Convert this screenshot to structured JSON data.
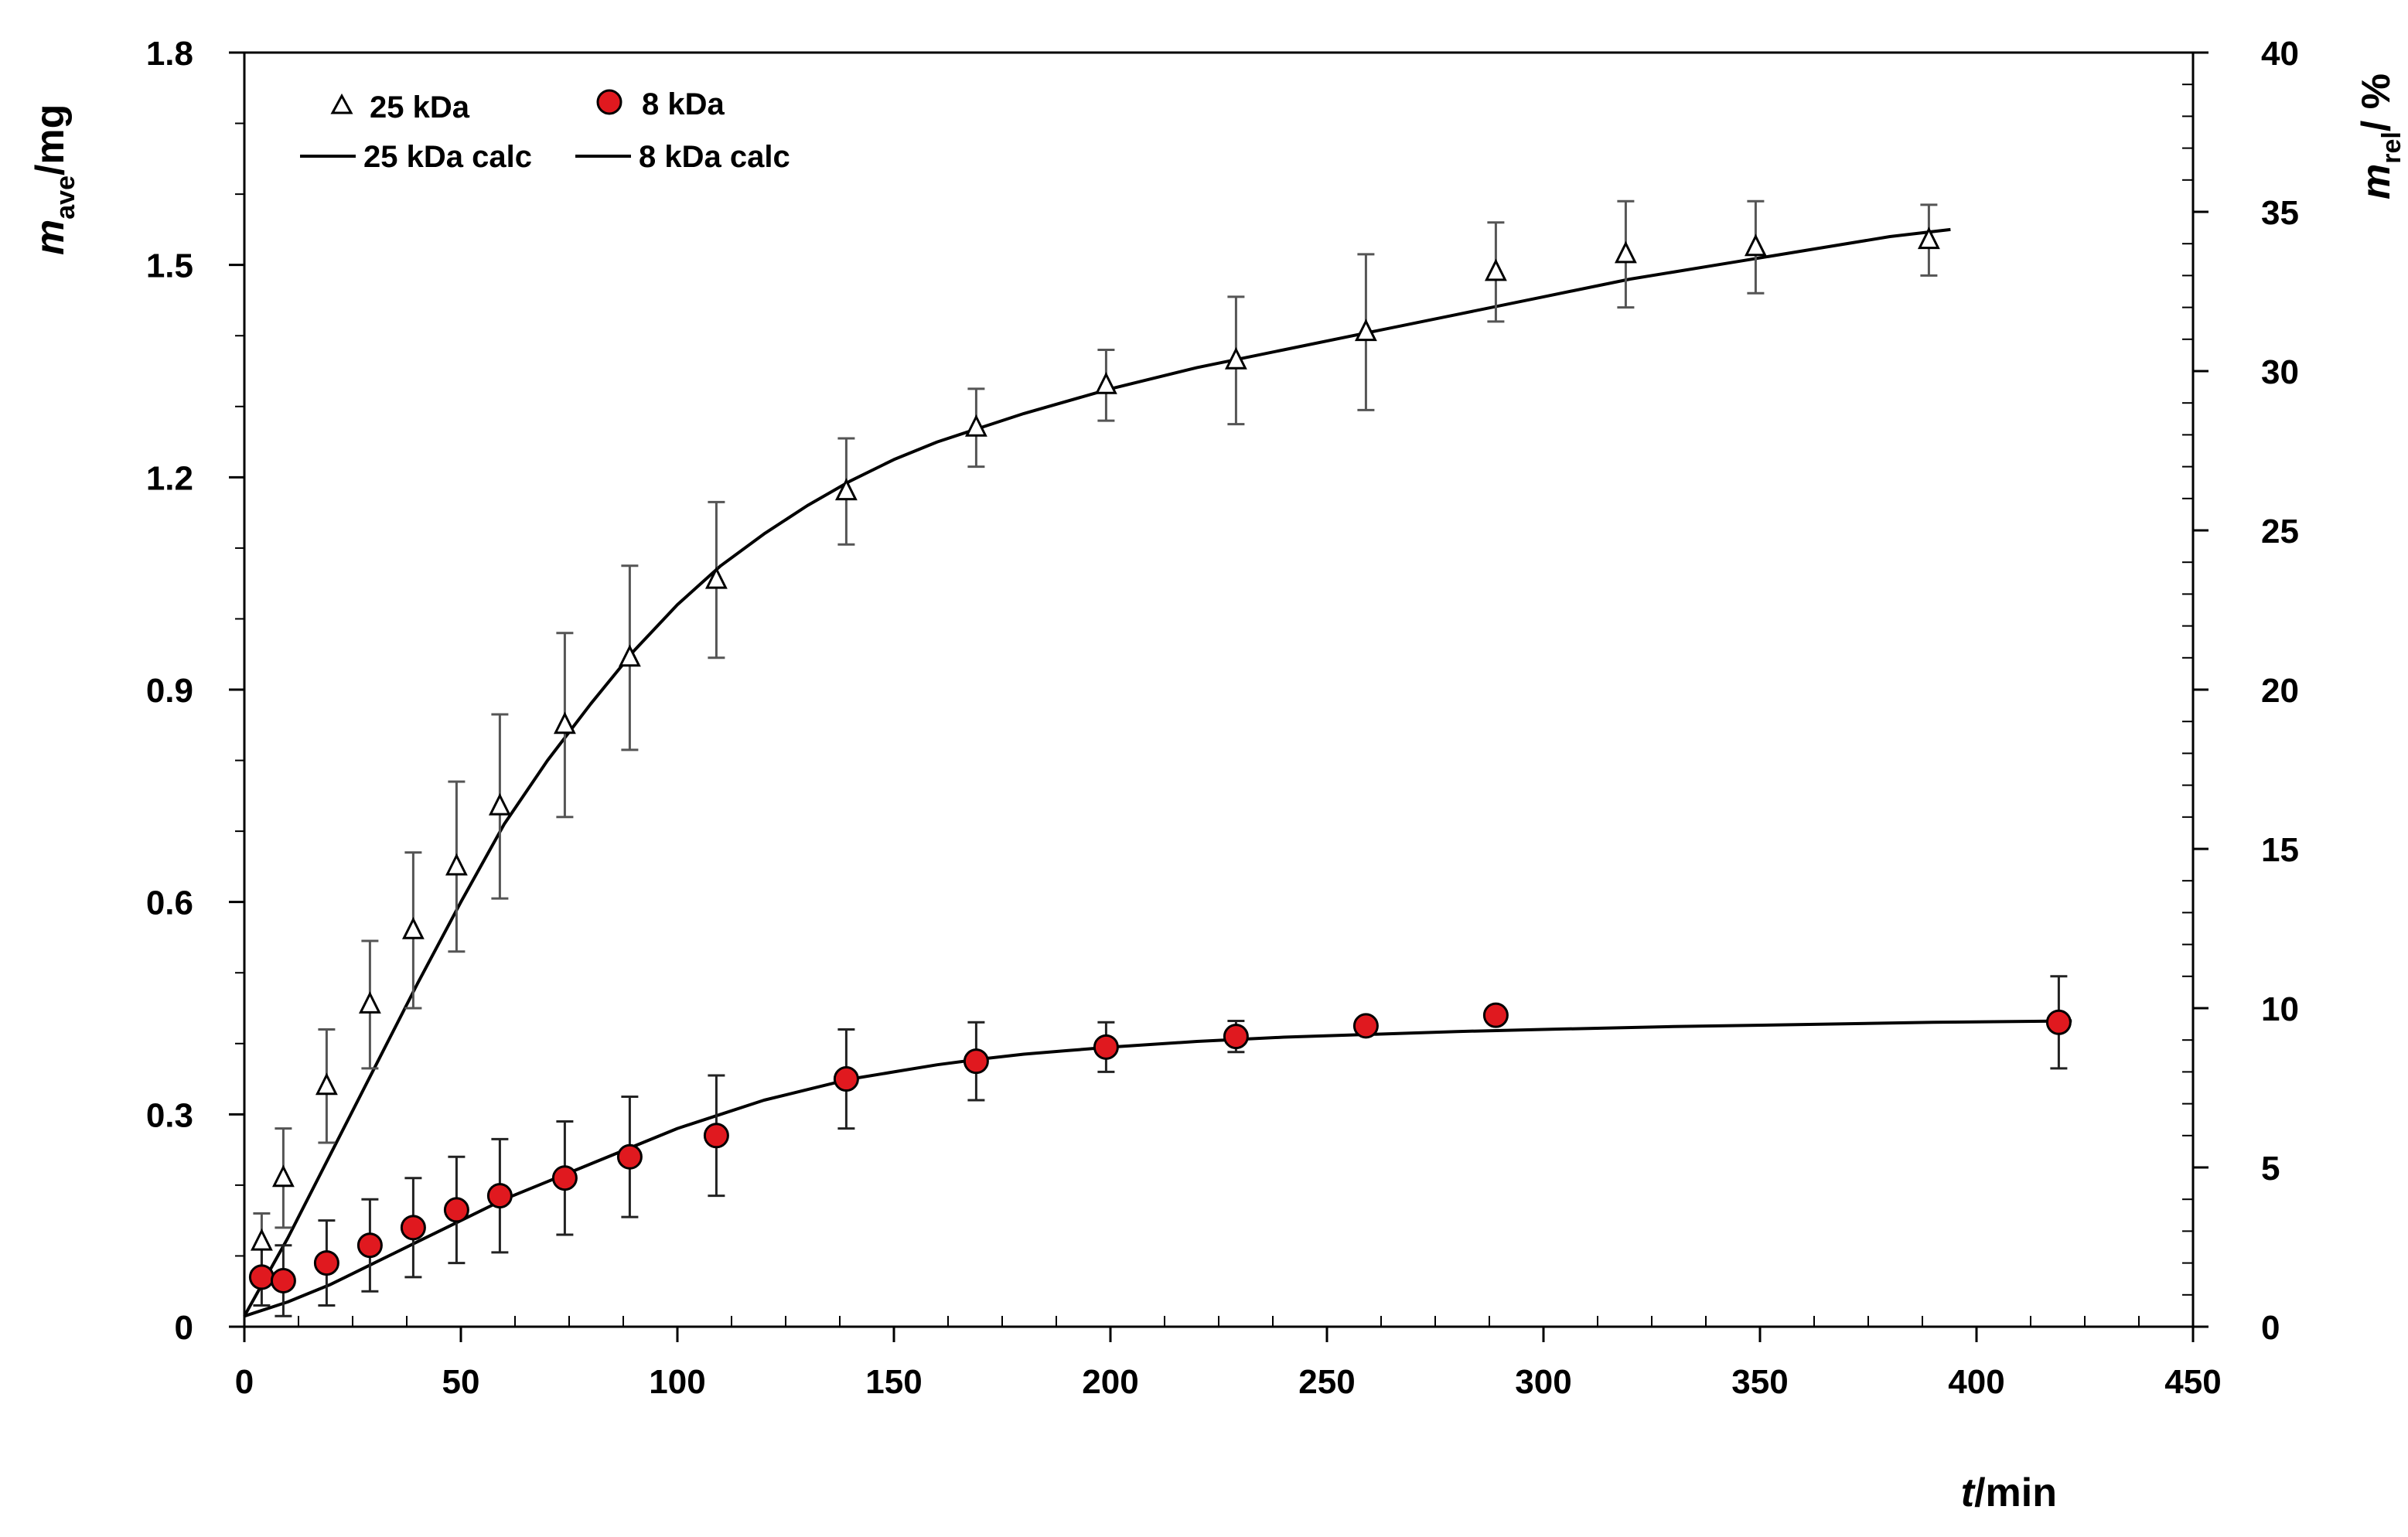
{
  "chart_data": {
    "type": "scatter",
    "title": "",
    "xlabel": {
      "italic": "t",
      "rest": "/min"
    },
    "ylabel": {
      "italic": "m",
      "sub": "ave",
      "rest": "/mg"
    },
    "y2label": {
      "italic": "m",
      "sub": "rel",
      "rest": "/ %"
    },
    "xlim": [
      0,
      450
    ],
    "ylim": [
      0,
      1.8
    ],
    "y2lim": [
      0,
      40
    ],
    "xticks": [
      "0",
      "50",
      "100",
      "150",
      "200",
      "250",
      "300",
      "350",
      "400",
      "450"
    ],
    "yticks": [
      "0",
      "0.3",
      "0.6",
      "0.9",
      "1.2",
      "1.5",
      "1.8"
    ],
    "y2ticks": [
      "0",
      "5",
      "10",
      "15",
      "20",
      "25",
      "30",
      "35",
      "40"
    ],
    "grid": false,
    "legend_position": "top-left",
    "legend": {
      "s25": "25 kDa",
      "s8": "8 kDa",
      "c25": "25 kDa calc",
      "c8": "8 kDa calc"
    },
    "series": [
      {
        "name": "25 kDa",
        "marker": "triangle",
        "color": "#ffffff",
        "errorbar_color": "#555555",
        "x": [
          4,
          9,
          19,
          29,
          39,
          49,
          59,
          74,
          89,
          109,
          139,
          169,
          199,
          229,
          259,
          289,
          319,
          349,
          389
        ],
        "y": [
          0.12,
          0.21,
          0.34,
          0.455,
          0.56,
          0.65,
          0.735,
          0.85,
          0.945,
          1.055,
          1.18,
          1.27,
          1.33,
          1.365,
          1.405,
          1.49,
          1.515,
          1.525,
          1.535
        ],
        "err": [
          0.04,
          0.07,
          0.08,
          0.09,
          0.11,
          0.12,
          0.13,
          0.13,
          0.13,
          0.11,
          0.075,
          0.055,
          0.05,
          0.09,
          0.11,
          0.07,
          0.075,
          0.065,
          0.05
        ]
      },
      {
        "name": "8 kDa",
        "marker": "circle",
        "color": "#e0191f",
        "errorbar_color": "#222222",
        "x": [
          4,
          9,
          19,
          29,
          39,
          49,
          59,
          74,
          89,
          109,
          139,
          169,
          199,
          229,
          259,
          289,
          419
        ],
        "y": [
          0.07,
          0.065,
          0.09,
          0.115,
          0.14,
          0.165,
          0.185,
          0.21,
          0.24,
          0.27,
          0.35,
          0.375,
          0.395,
          0.41,
          0.425,
          0.44,
          0.43
        ],
        "err": [
          0.04,
          0.05,
          0.06,
          0.065,
          0.07,
          0.075,
          0.08,
          0.08,
          0.085,
          0.085,
          0.07,
          0.055,
          0.035,
          0.022,
          0.0,
          0.0,
          0.065
        ]
      },
      {
        "name": "25 kDa calc",
        "marker": "line",
        "color": "#000000",
        "x": [
          0,
          10,
          20,
          30,
          40,
          50,
          60,
          70,
          80,
          90,
          100,
          110,
          120,
          130,
          140,
          150,
          160,
          170,
          180,
          200,
          220,
          240,
          260,
          280,
          300,
          320,
          340,
          360,
          380,
          394
        ],
        "y": [
          0.015,
          0.125,
          0.245,
          0.365,
          0.485,
          0.6,
          0.71,
          0.8,
          0.88,
          0.955,
          1.02,
          1.075,
          1.12,
          1.16,
          1.195,
          1.225,
          1.25,
          1.27,
          1.29,
          1.325,
          1.355,
          1.38,
          1.405,
          1.43,
          1.455,
          1.48,
          1.5,
          1.52,
          1.54,
          1.55
        ]
      },
      {
        "name": "8 kDa calc",
        "marker": "line",
        "color": "#000000",
        "x": [
          0,
          10,
          20,
          30,
          40,
          50,
          60,
          70,
          80,
          90,
          100,
          110,
          120,
          130,
          140,
          150,
          160,
          170,
          180,
          190,
          200,
          220,
          240,
          260,
          280,
          300,
          330,
          360,
          390,
          422
        ],
        "y": [
          0.015,
          0.035,
          0.06,
          0.09,
          0.12,
          0.15,
          0.18,
          0.205,
          0.23,
          0.255,
          0.28,
          0.3,
          0.32,
          0.335,
          0.35,
          0.36,
          0.37,
          0.378,
          0.385,
          0.39,
          0.395,
          0.403,
          0.409,
          0.413,
          0.417,
          0.42,
          0.424,
          0.427,
          0.43,
          0.432
        ]
      }
    ]
  }
}
